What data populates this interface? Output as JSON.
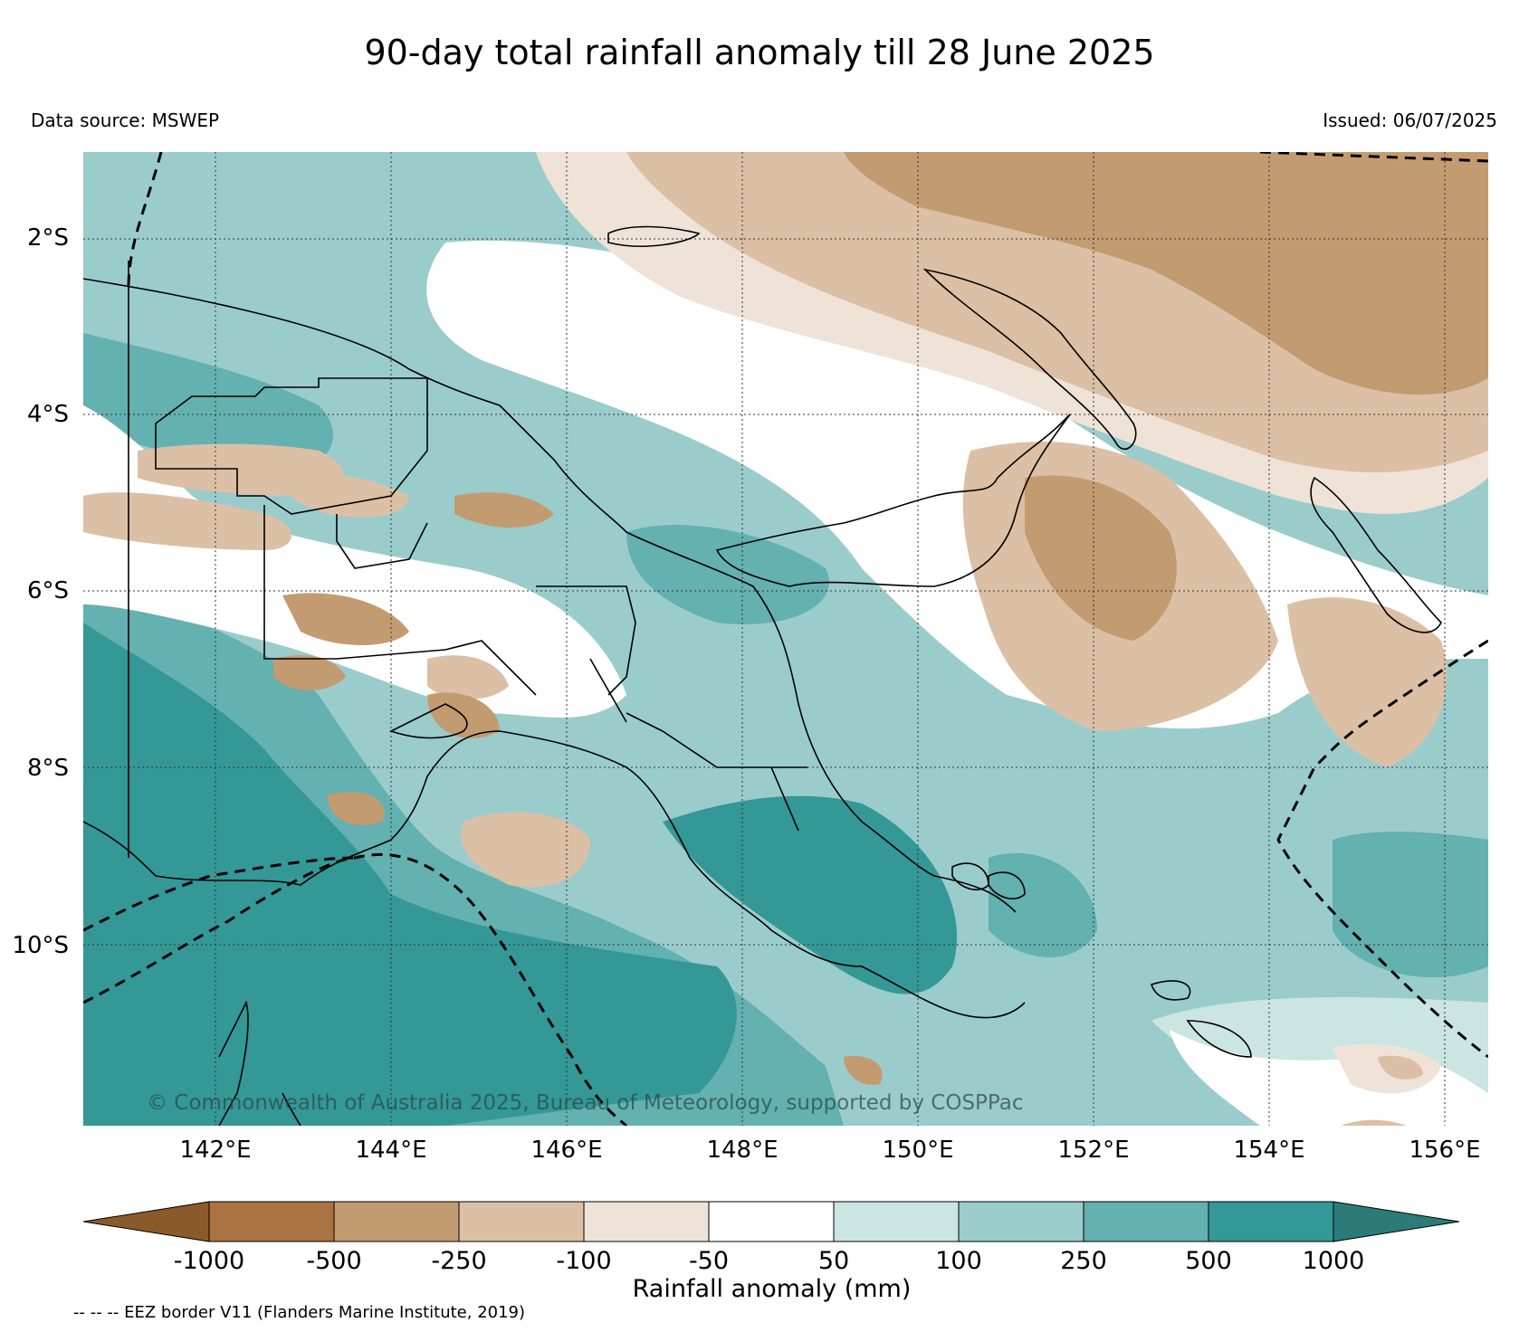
{
  "title": "90-day total rainfall anomaly till 28 June 2025",
  "data_source": "Data source: MSWEP",
  "issued": "Issued: 06/07/2025",
  "copyright": "© Commonwealth of Australia 2025, Bureau of Meteorology, supported by COSPPac",
  "footnote": "-- -- -- EEZ border V11 (Flanders Marine Institute, 2019)",
  "axes": {
    "lat_labels": [
      "2°S",
      "4°S",
      "6°S",
      "8°S",
      "10°S"
    ],
    "lon_labels": [
      "142°E",
      "144°E",
      "146°E",
      "148°E",
      "150°E",
      "152°E",
      "154°E",
      "156°E"
    ]
  },
  "colorbar": {
    "label": "Rainfall anomaly (mm)",
    "ticks": [
      "-1000",
      "-500",
      "-250",
      "-100",
      "-50",
      "50",
      "100",
      "250",
      "500",
      "1000"
    ],
    "colors": [
      "#8b5a2b",
      "#a97441",
      "#c39b70",
      "#dbc0a5",
      "#efe3d8",
      "#ffffff",
      "#cbe5e2",
      "#9bcccc",
      "#63b1b0",
      "#339896",
      "#2d7b79"
    ]
  }
}
